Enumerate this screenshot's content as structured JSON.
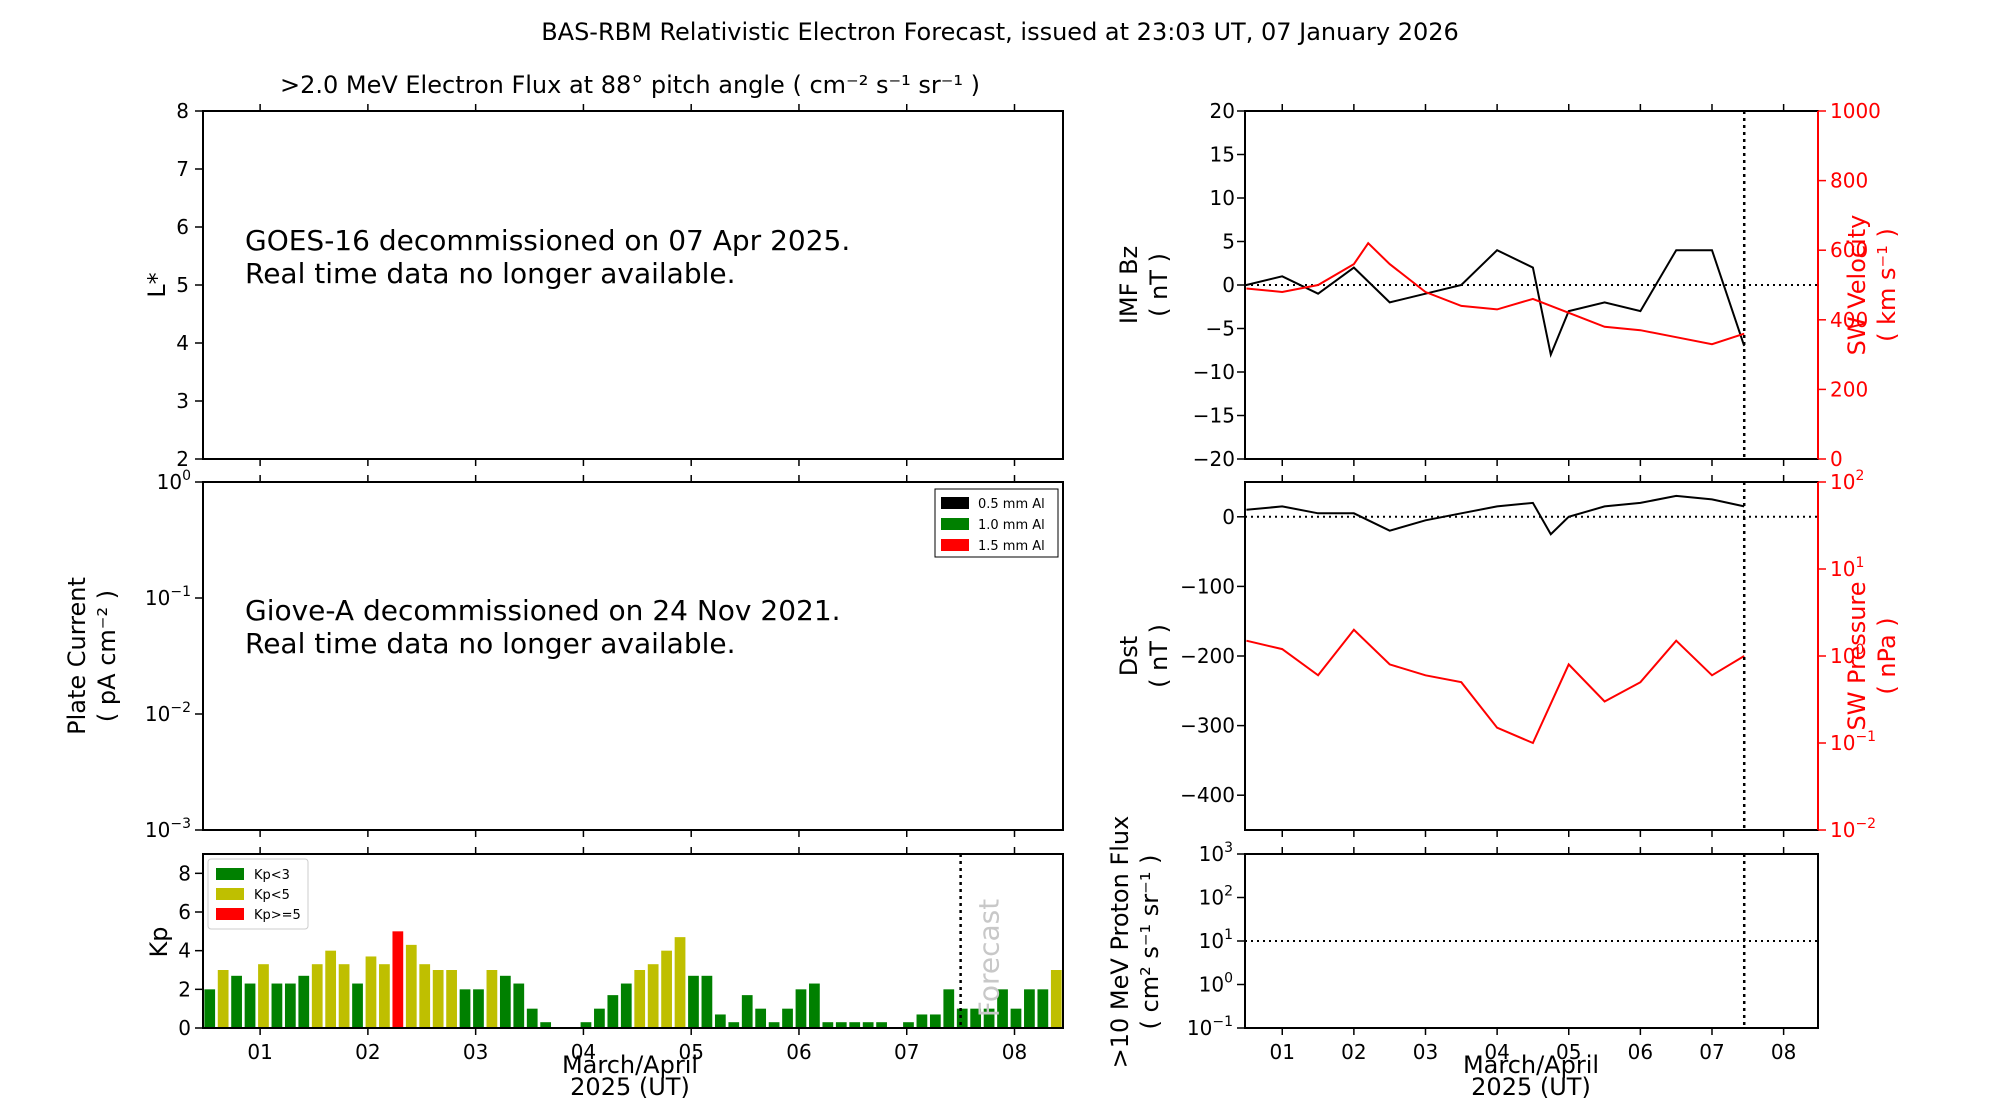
{
  "figure_title": "BAS-RBM Relativistic Electron Forecast, issued at 23:03 UT, 07 January 2026",
  "colors": {
    "kp_low": "#008000",
    "kp_mid": "#bfbf00",
    "kp_high": "#ff0000",
    "red": "#ff0000"
  },
  "chart_data": [
    {
      "id": "electron-flux",
      "type": "heatmap",
      "title": ">2.0 MeV Electron Flux at 88° pitch angle ( cm⁻² s⁻¹ sr⁻¹ )",
      "ylabel": "L*",
      "yticks": [
        "2",
        "3",
        "4",
        "5",
        "6",
        "7",
        "8"
      ],
      "ylim": [
        2,
        8
      ],
      "message": [
        "GOES-16 decommissioned on 07 Apr 2025.",
        "Real time data no longer available."
      ]
    },
    {
      "id": "plate-current",
      "type": "line",
      "ylabel": [
        "Plate Current",
        "( pA cm⁻² )"
      ],
      "yscale": "log",
      "yticks": [
        {
          "base": "10",
          "exp": "0"
        },
        {
          "base": "10",
          "exp": "−1"
        },
        {
          "base": "10",
          "exp": "−2"
        },
        {
          "base": "10",
          "exp": "−3"
        }
      ],
      "legend": [
        {
          "label": "0.5 mm Al",
          "color": "#000000"
        },
        {
          "label": "1.0 mm Al",
          "color": "#008000"
        },
        {
          "label": "1.5 mm Al",
          "color": "#ff0000"
        }
      ],
      "message": [
        "Giove-A decommissioned on 24 Nov 2021.",
        "Real time data no longer available."
      ]
    },
    {
      "id": "kp-index",
      "type": "bar",
      "ylabel": "Kp",
      "ylim": [
        0,
        9
      ],
      "yticks": [
        "0",
        "2",
        "4",
        "6",
        "8"
      ],
      "xlabel": [
        "March/April",
        "2025 (UT)"
      ],
      "xticks": [
        "01",
        "02",
        "03",
        "04",
        "05",
        "06",
        "07",
        "08"
      ],
      "forecast_label": "Forecast",
      "legend": [
        "Kp<3",
        "Kp<5",
        "Kp>=5"
      ],
      "values": [
        2.0,
        3.0,
        2.7,
        2.3,
        3.3,
        2.3,
        2.3,
        2.7,
        3.3,
        4.0,
        3.3,
        2.3,
        3.7,
        3.3,
        5.0,
        4.3,
        3.3,
        3.0,
        3.0,
        2.0,
        2.0,
        3.0,
        2.7,
        2.3,
        1.0,
        0.3,
        0,
        0,
        0.3,
        1.0,
        1.7,
        2.3,
        3.0,
        3.3,
        4.0,
        4.7,
        2.7,
        2.7,
        0.7,
        0.3,
        1.7,
        1.0,
        0.3,
        1.0,
        2.0,
        2.3,
        0.3,
        0.3,
        0.3,
        0.3,
        0.3,
        0,
        0.3,
        0.7,
        0.7,
        2.0,
        1.0,
        1.0,
        1.0,
        2.0,
        1.0,
        2.0,
        2.0,
        3.0
      ]
    },
    {
      "id": "imf-bz-sw-velocity",
      "type": "line",
      "ylabel_left": [
        "IMF Bz",
        "( nT )"
      ],
      "ylabel_right": [
        "SW Velocity",
        "( km s⁻¹ )"
      ],
      "ylim_left": [
        -20,
        20
      ],
      "ylim_right": [
        0,
        1000
      ],
      "yticks_left": [
        "−20",
        "−15",
        "−10",
        "−5",
        "0",
        "5",
        "10",
        "15",
        "20"
      ],
      "yticks_right": [
        "0",
        "200",
        "400",
        "600",
        "800",
        "1000"
      ],
      "series": [
        {
          "name": "IMF Bz",
          "color": "#000000",
          "x": [
            0.5,
            1.0,
            1.5,
            2.0,
            2.5,
            3.0,
            3.5,
            4.0,
            4.5,
            4.75,
            5.0,
            5.5,
            6.0,
            6.5,
            7.0,
            7.45
          ],
          "values": [
            0,
            1,
            -1,
            2,
            -2,
            -1,
            0,
            4,
            2,
            -8,
            -3,
            -2,
            -3,
            4,
            4,
            -7
          ]
        },
        {
          "name": "SW Velocity",
          "color": "#ff0000",
          "x": [
            0.5,
            1.0,
            1.5,
            2.0,
            2.2,
            2.5,
            3.0,
            3.5,
            4.0,
            4.5,
            5.0,
            5.5,
            6.0,
            6.5,
            7.0,
            7.45
          ],
          "values": [
            490,
            480,
            500,
            560,
            620,
            560,
            480,
            440,
            430,
            460,
            420,
            380,
            370,
            350,
            330,
            360
          ]
        }
      ]
    },
    {
      "id": "dst-sw-pressure",
      "type": "line",
      "ylabel_left": [
        "Dst",
        "( nT )"
      ],
      "ylabel_right": [
        "SW Pressure",
        "( nPa )"
      ],
      "ylim_left": [
        -450,
        50
      ],
      "yscale_right": "log",
      "yticks_left": [
        "0",
        "−100",
        "−200",
        "−300",
        "−400"
      ],
      "yticks_right": [
        {
          "base": "10",
          "exp": "2"
        },
        {
          "base": "10",
          "exp": "1"
        },
        {
          "base": "10",
          "exp": "0"
        },
        {
          "base": "10",
          "exp": "−1"
        },
        {
          "base": "10",
          "exp": "−2"
        }
      ],
      "series": [
        {
          "name": "Dst",
          "color": "#000000",
          "x": [
            0.5,
            1.0,
            1.5,
            2.0,
            2.5,
            3.0,
            3.5,
            4.0,
            4.5,
            4.75,
            5.0,
            5.5,
            6.0,
            6.5,
            7.0,
            7.45
          ],
          "values": [
            10,
            15,
            5,
            5,
            -20,
            -5,
            5,
            15,
            20,
            -25,
            0,
            15,
            20,
            30,
            25,
            15
          ]
        },
        {
          "name": "SW Pressure",
          "color": "#ff0000",
          "x": [
            0.5,
            1.0,
            1.5,
            2.0,
            2.5,
            3.0,
            3.5,
            4.0,
            4.5,
            5.0,
            5.5,
            6.0,
            6.5,
            7.0,
            7.45
          ],
          "values": [
            1.5,
            1.2,
            0.6,
            2.0,
            0.8,
            0.6,
            0.5,
            0.15,
            0.1,
            0.8,
            0.3,
            0.5,
            1.5,
            0.6,
            1.0
          ]
        }
      ]
    },
    {
      "id": "proton-flux",
      "type": "line",
      "ylabel": [
        ">10 MeV Proton Flux",
        "( cm² s⁻¹ sr⁻¹ )"
      ],
      "yscale": "log",
      "yticks": [
        {
          "base": "10",
          "exp": "3"
        },
        {
          "base": "10",
          "exp": "2"
        },
        {
          "base": "10",
          "exp": "1"
        },
        {
          "base": "10",
          "exp": "0"
        },
        {
          "base": "10",
          "exp": "−1"
        }
      ],
      "xlabel": [
        "March/April",
        "2025 (UT)"
      ],
      "xticks": [
        "01",
        "02",
        "03",
        "04",
        "05",
        "06",
        "07",
        "08"
      ],
      "threshold": 10
    }
  ]
}
